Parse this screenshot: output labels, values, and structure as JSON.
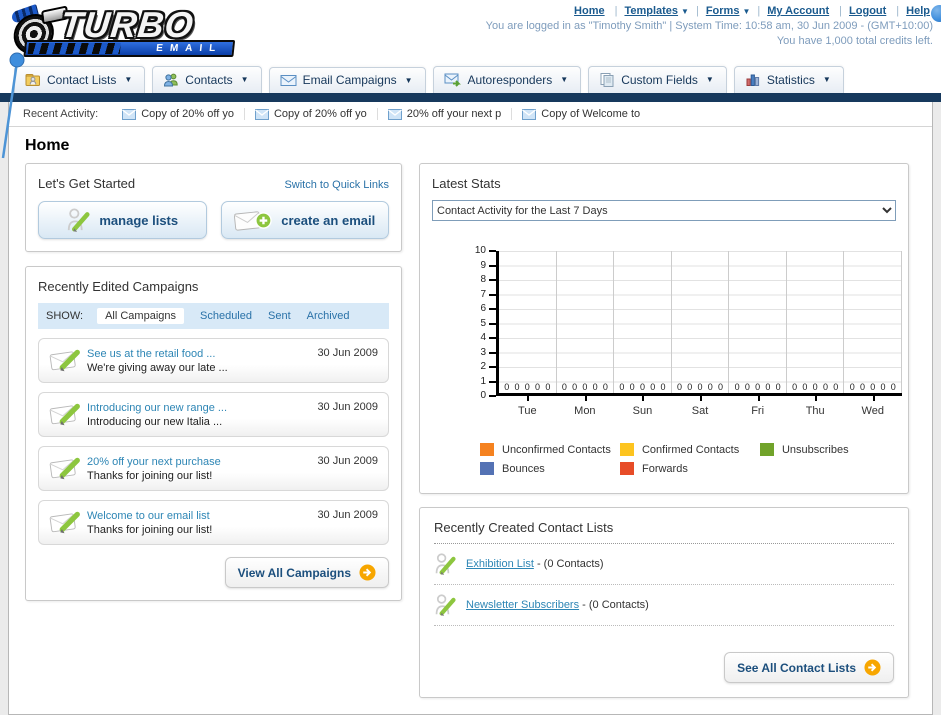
{
  "header": {
    "logo_title": "TURBO",
    "logo_subtitle": "EMAIL",
    "nav_links": [
      {
        "label": "Home",
        "caret": ""
      },
      {
        "label": "Templates",
        "caret": "▼"
      },
      {
        "label": "Forms",
        "caret": "▼"
      },
      {
        "label": "My Account",
        "caret": ""
      },
      {
        "label": "Logout",
        "caret": ""
      },
      {
        "label": "Help",
        "caret": ""
      }
    ],
    "login_line": "You are logged in as \"Timothy Smith\" | System Time: 10:58 am, 30 Jun 2009 - (GMT+10:00)",
    "credits_line": "You have 1,000 total credits left."
  },
  "nav_tabs": [
    {
      "label": "Contact Lists",
      "caret": "▼"
    },
    {
      "label": "Contacts",
      "caret": "▼"
    },
    {
      "label": "Email Campaigns",
      "caret": "▼"
    },
    {
      "label": "Autoresponders",
      "caret": "▼"
    },
    {
      "label": "Custom Fields",
      "caret": "▼"
    },
    {
      "label": "Statistics",
      "caret": "▼"
    }
  ],
  "recent_activity": {
    "label": "Recent Activity:",
    "items": [
      {
        "text": "Copy of 20% off yo"
      },
      {
        "text": "Copy of 20% off yo"
      },
      {
        "text": "20% off your next p"
      },
      {
        "text": "Copy of Welcome to"
      }
    ]
  },
  "page": {
    "title": "Home"
  },
  "get_started": {
    "title": "Let's Get Started",
    "switch_link": "Switch to Quick Links",
    "manage_lists_label": "manage lists",
    "create_email_label": "create an email"
  },
  "campaigns": {
    "title": "Recently Edited Campaigns",
    "show_label": "SHOW:",
    "filters": [
      "All Campaigns",
      "Scheduled",
      "Sent",
      "Archived"
    ],
    "active_filter": "All Campaigns",
    "items": [
      {
        "title": "See us at the retail food ...",
        "subtitle": "We're giving away our late ...",
        "date": "30 Jun 2009"
      },
      {
        "title": "Introducing our new range ...",
        "subtitle": "Introducing our new Italia ...",
        "date": "30 Jun 2009"
      },
      {
        "title": "20% off your next purchase",
        "subtitle": "Thanks for joining our list!",
        "date": "30 Jun 2009"
      },
      {
        "title": "Welcome to our email list",
        "subtitle": "Thanks for joining our list!",
        "date": "30 Jun 2009"
      }
    ],
    "view_all_label": "View All Campaigns"
  },
  "latest_stats": {
    "title": "Latest Stats",
    "dropdown_value": "Contact Activity for the Last 7 Days"
  },
  "chart_data": {
    "type": "bar",
    "title": "Contact Activity for the Last 7 Days",
    "categories": [
      "Tue",
      "Mon",
      "Sun",
      "Sat",
      "Fri",
      "Thu",
      "Wed"
    ],
    "series": [
      {
        "name": "Unconfirmed Contacts",
        "color": "#F58220",
        "values": [
          0,
          0,
          0,
          0,
          0,
          0,
          0
        ]
      },
      {
        "name": "Confirmed Contacts",
        "color": "#FDC41F",
        "values": [
          0,
          0,
          0,
          0,
          0,
          0,
          0
        ]
      },
      {
        "name": "Unsubscribes",
        "color": "#71A32A",
        "values": [
          0,
          0,
          0,
          0,
          0,
          0,
          0
        ]
      },
      {
        "name": "Bounces",
        "color": "#5472B4",
        "values": [
          0,
          0,
          0,
          0,
          0,
          0,
          0
        ]
      },
      {
        "name": "Forwards",
        "color": "#E74C28",
        "values": [
          0,
          0,
          0,
          0,
          0,
          0,
          0
        ]
      }
    ],
    "ylim": [
      0,
      10
    ],
    "y_step": 1,
    "grid": true,
    "legend_position": "bottom"
  },
  "contact_lists": {
    "title": "Recently Created Contact Lists",
    "items": [
      {
        "name": "Exhibition List",
        "suffix": "- (0 Contacts)"
      },
      {
        "name": "Newsletter Subscribers",
        "suffix": "- (0 Contacts)"
      }
    ],
    "see_all_label": "See All Contact Lists"
  }
}
